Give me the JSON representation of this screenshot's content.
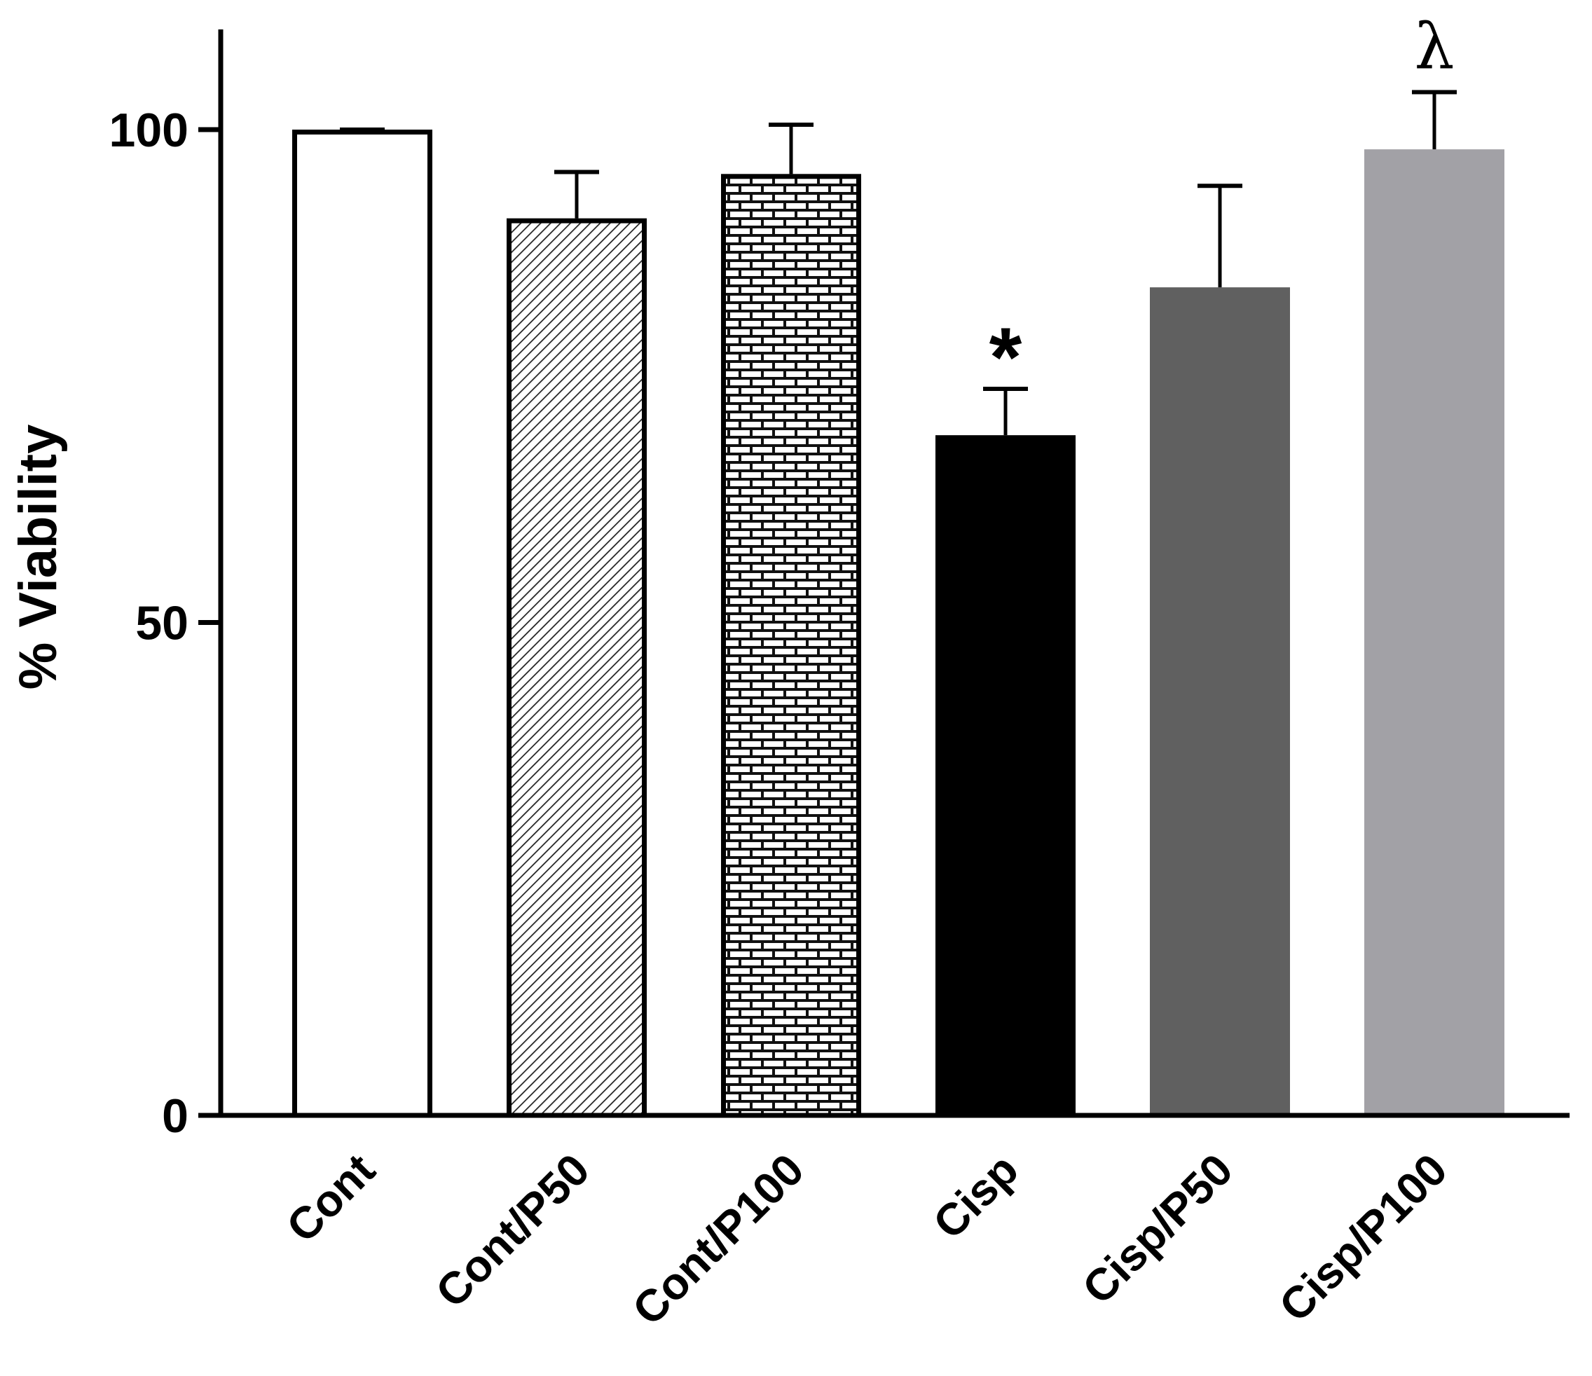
{
  "chart_data": {
    "type": "bar",
    "title": "",
    "xlabel": "",
    "ylabel": "% Viability",
    "ylim": [
      0,
      110
    ],
    "yticks": [
      0,
      50,
      100
    ],
    "yticklabels": [
      "0",
      "50",
      "100"
    ],
    "grid": false,
    "categories": [
      "Cont",
      "Cont/P50",
      "Cont/P100",
      "Cisp",
      "Cisp/P50",
      "Cisp/P100"
    ],
    "values": [
      100,
      91,
      95.5,
      69,
      84,
      98
    ],
    "errors": [
      0,
      4.7,
      5,
      4.7,
      10.3,
      5.8
    ],
    "fills": [
      "white",
      "diagonal-hatch",
      "brick",
      "#000000",
      "#606060",
      "#a2a1a6"
    ],
    "annotations": [
      {
        "category": "Cisp",
        "text": "*"
      },
      {
        "category": "Cisp/P100",
        "text": "λ"
      }
    ]
  }
}
